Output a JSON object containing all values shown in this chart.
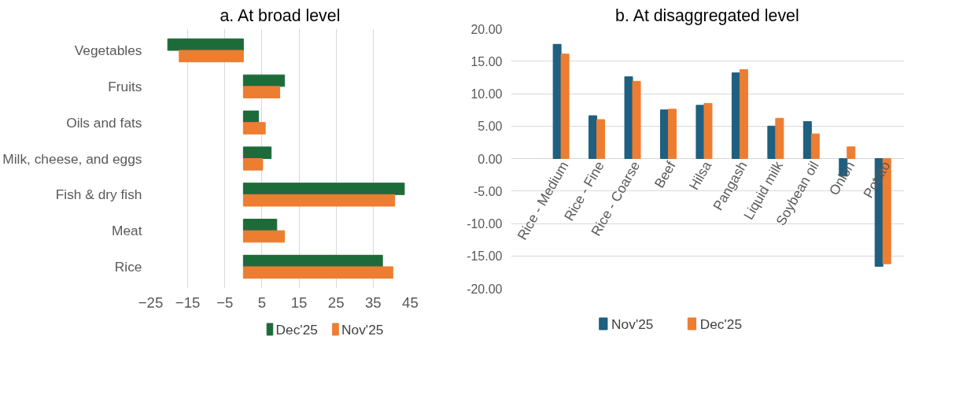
{
  "chart_data": [
    {
      "type": "bar",
      "title": "a. At broad level",
      "orientation": "horizontal",
      "categories": [
        "Vegetables",
        "Fruits",
        "Oils and fats",
        "Milk, cheese, and eggs",
        "Fish & dry fish",
        "Meat",
        "Rice"
      ],
      "series": [
        {
          "name": "Dec'25",
          "color": "#1e6b3a",
          "values": [
            -20.4,
            11.1,
            4.1,
            7.5,
            43.4,
            9.0,
            37.5
          ]
        },
        {
          "name": "Nov'25",
          "color": "#ed7d31",
          "values": [
            -17.3,
            9.8,
            5.9,
            5.2,
            40.8,
            11.1,
            40.3
          ]
        }
      ],
      "xlim": [
        -25,
        45
      ],
      "xticks": [
        -25,
        -15,
        -5,
        5,
        15,
        25,
        35,
        45
      ],
      "grid": "x",
      "legend": "bottom"
    },
    {
      "type": "bar",
      "title": "b. At disaggregated level",
      "categories": [
        "Rice - Medium",
        "Rice - Fine",
        "Rice - Coarse",
        "Beef",
        "Hilsa",
        "Pangash",
        "Liquid milk",
        "Soybean oil",
        "Onion",
        "Potato"
      ],
      "series": [
        {
          "name": "Nov'25",
          "color": "#1f5f7f",
          "values": [
            17.6,
            6.6,
            12.6,
            7.5,
            8.2,
            13.2,
            5.0,
            5.7,
            -2.7,
            -16.6
          ]
        },
        {
          "name": "Dec'25",
          "color": "#ed7d31",
          "values": [
            16.1,
            6.0,
            11.9,
            7.6,
            8.5,
            13.7,
            6.2,
            3.8,
            1.8,
            -16.2
          ]
        }
      ],
      "ylim": [
        -20,
        20
      ],
      "yticks": [
        {
          "value": -20,
          "label": "-20.00"
        },
        {
          "value": -15,
          "label": "-15.00"
        },
        {
          "value": -10,
          "label": "-10.00"
        },
        {
          "value": -5,
          "label": "-5.00"
        },
        {
          "value": 0,
          "label": "0.00"
        },
        {
          "value": 5,
          "label": "5.00"
        },
        {
          "value": 10,
          "label": "10.00"
        },
        {
          "value": 15,
          "label": "15.00"
        },
        {
          "value": 20,
          "label": "20.00"
        }
      ],
      "grid": "y",
      "legend": "bottom"
    }
  ]
}
